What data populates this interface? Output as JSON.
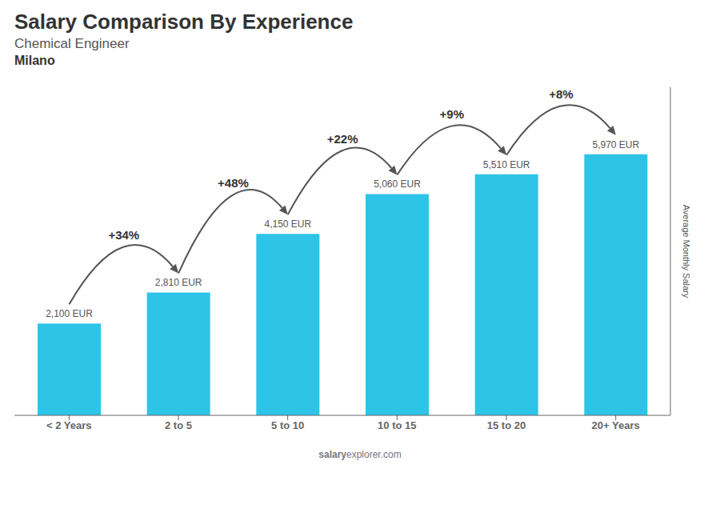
{
  "chart_data": {
    "type": "bar",
    "title": "Salary Comparison By Experience",
    "subtitle": "Chemical Engineer",
    "annotations": {
      "city": "Milano",
      "changes": [
        "+34%",
        "+48%",
        "+22%",
        "+9%",
        "+8%"
      ],
      "watermark": [
        "salary",
        "explorer.com"
      ]
    },
    "ylabel": "Average Monthly Salary",
    "categories": [
      "< 2 Years",
      "2 to 5",
      "5 to 10",
      "10 to 15",
      "15 to 20",
      "20+ Years"
    ],
    "values": [
      2100,
      2810,
      4150,
      5060,
      5510,
      5970
    ],
    "value_labels": [
      "2,100 EUR",
      "2,810 EUR",
      "4,150 EUR",
      "5,060 EUR",
      "5,510 EUR",
      "5,970 EUR"
    ],
    "data_labels": true,
    "color": "#2ec4e8",
    "ylim": [
      0,
      7500
    ],
    "tick_labels": "x",
    "grid": false
  }
}
